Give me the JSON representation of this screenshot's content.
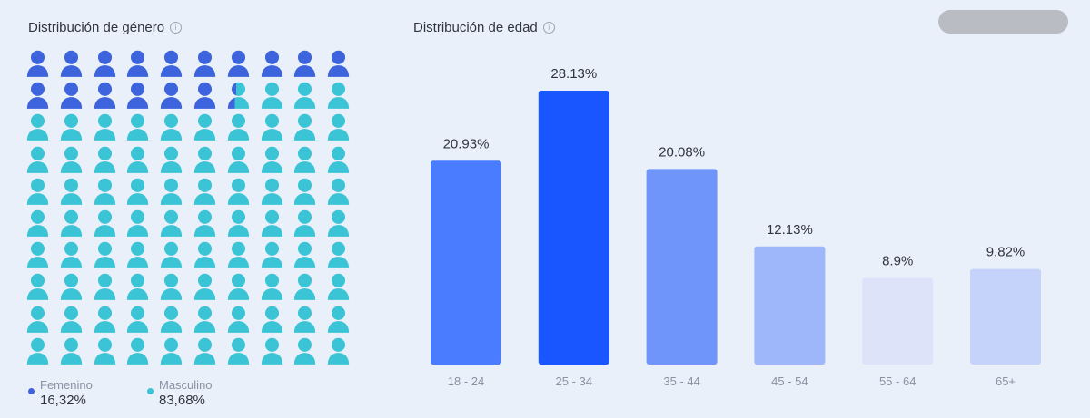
{
  "gender_section": {
    "title": "Distribución de género",
    "info_icon": "info-icon",
    "legend": [
      {
        "label": "Femenino",
        "value": "16,32%",
        "color": "#3d63dd"
      },
      {
        "label": "Masculino",
        "value": "83,68%",
        "color": "#3bc4d6"
      }
    ]
  },
  "age_section": {
    "title": "Distribución de edad",
    "info_icon": "info-icon"
  },
  "chart_data": [
    {
      "type": "pictograph",
      "title": "Distribución de género",
      "categories": [
        "Femenino",
        "Masculino"
      ],
      "values": [
        16.32,
        83.68
      ],
      "units_total": 100,
      "colors": [
        "#3d63dd",
        "#3bc4d6"
      ]
    },
    {
      "type": "bar",
      "title": "Distribución de edad",
      "categories": [
        "18 - 24",
        "25 - 34",
        "35 - 44",
        "45 - 54",
        "55 - 64",
        "65+"
      ],
      "values": [
        20.93,
        28.13,
        20.08,
        12.13,
        8.9,
        9.82
      ],
      "data_labels": [
        "20.93%",
        "28.13%",
        "20.08%",
        "12.13%",
        "8.9%",
        "9.82%"
      ],
      "colors": [
        "#4a7cff",
        "#1a56ff",
        "#6f95fb",
        "#9eb6fa",
        "#dde4f9",
        "#c5d3fa"
      ],
      "ylim": [
        0,
        28.13
      ],
      "grid": false
    }
  ]
}
